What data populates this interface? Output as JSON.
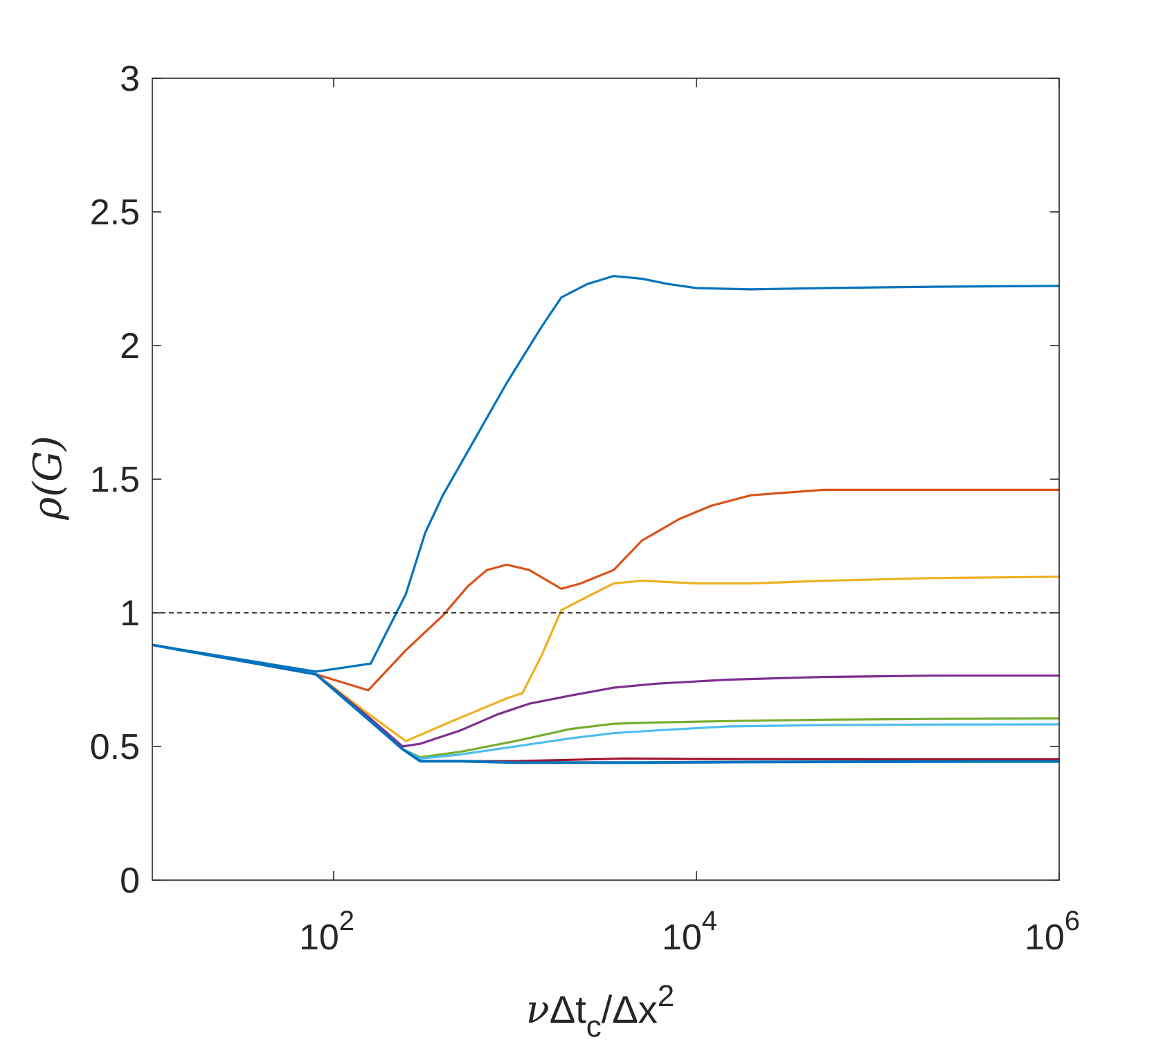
{
  "chart_data": {
    "type": "line",
    "xscale": "log",
    "xlim": [
      10,
      1000000
    ],
    "ylim": [
      0,
      3
    ],
    "grid": false,
    "legend": "none",
    "xticks": [
      {
        "value": 100,
        "base": "10",
        "exp": "2"
      },
      {
        "value": 10000,
        "base": "10",
        "exp": "4"
      },
      {
        "value": 1000000,
        "base": "10",
        "exp": "6"
      }
    ],
    "yticks": [
      {
        "value": 0,
        "label": "0"
      },
      {
        "value": 0.5,
        "label": "0.5"
      },
      {
        "value": 1,
        "label": "1"
      },
      {
        "value": 1.5,
        "label": "1.5"
      },
      {
        "value": 2,
        "label": "2"
      },
      {
        "value": 2.5,
        "label": "2.5"
      },
      {
        "value": 3,
        "label": "3"
      }
    ],
    "xlabel": {
      "nu": "ν",
      "delta_t": "Δt",
      "sub": "c",
      "slash": "/",
      "delta_x": "Δx",
      "sup": "2"
    },
    "ylabel": {
      "rho": "ρ",
      "open": "(",
      "G": "G",
      "close": ")"
    },
    "reference_line": {
      "y": 1,
      "style": "dashed",
      "color": "#000000"
    },
    "series": [
      {
        "color": "#0072BD",
        "points": [
          [
            10,
            0.88
          ],
          [
            80,
            0.78
          ],
          [
            160,
            0.81
          ],
          [
            250,
            1.07
          ],
          [
            320,
            1.3
          ],
          [
            400,
            1.44
          ],
          [
            600,
            1.65
          ],
          [
            900,
            1.86
          ],
          [
            1400,
            2.07
          ],
          [
            1800,
            2.18
          ],
          [
            2500,
            2.23
          ],
          [
            3500,
            2.26
          ],
          [
            5000,
            2.25
          ],
          [
            7000,
            2.23
          ],
          [
            10000,
            2.215
          ],
          [
            20000,
            2.21
          ],
          [
            50000,
            2.215
          ],
          [
            200000,
            2.22
          ],
          [
            1000000,
            2.223
          ]
        ]
      },
      {
        "color": "#D95319",
        "points": [
          [
            10,
            0.88
          ],
          [
            80,
            0.77
          ],
          [
            155,
            0.71
          ],
          [
            250,
            0.86
          ],
          [
            400,
            0.99
          ],
          [
            550,
            1.1
          ],
          [
            700,
            1.16
          ],
          [
            900,
            1.18
          ],
          [
            1200,
            1.16
          ],
          [
            1600,
            1.11
          ],
          [
            1800,
            1.09
          ],
          [
            2300,
            1.11
          ],
          [
            3500,
            1.16
          ],
          [
            5000,
            1.27
          ],
          [
            8000,
            1.35
          ],
          [
            12000,
            1.4
          ],
          [
            20000,
            1.44
          ],
          [
            50000,
            1.46
          ],
          [
            200000,
            1.46
          ],
          [
            1000000,
            1.46
          ]
        ]
      },
      {
        "color": "#EDB120",
        "points": [
          [
            10,
            0.88
          ],
          [
            80,
            0.77
          ],
          [
            150,
            0.63
          ],
          [
            250,
            0.52
          ],
          [
            400,
            0.58
          ],
          [
            600,
            0.63
          ],
          [
            900,
            0.68
          ],
          [
            1100,
            0.7
          ],
          [
            1400,
            0.84
          ],
          [
            1800,
            1.01
          ],
          [
            2500,
            1.06
          ],
          [
            3500,
            1.11
          ],
          [
            5000,
            1.12
          ],
          [
            10000,
            1.11
          ],
          [
            20000,
            1.11
          ],
          [
            50000,
            1.12
          ],
          [
            200000,
            1.13
          ],
          [
            1000000,
            1.135
          ]
        ]
      },
      {
        "color": "#7E2F8E",
        "points": [
          [
            10,
            0.88
          ],
          [
            80,
            0.77
          ],
          [
            150,
            0.62
          ],
          [
            240,
            0.5
          ],
          [
            300,
            0.51
          ],
          [
            500,
            0.56
          ],
          [
            800,
            0.62
          ],
          [
            1200,
            0.66
          ],
          [
            2000,
            0.69
          ],
          [
            3500,
            0.72
          ],
          [
            6000,
            0.735
          ],
          [
            15000,
            0.75
          ],
          [
            50000,
            0.76
          ],
          [
            200000,
            0.765
          ],
          [
            1000000,
            0.765
          ]
        ]
      },
      {
        "color": "#77AC30",
        "points": [
          [
            10,
            0.88
          ],
          [
            80,
            0.77
          ],
          [
            150,
            0.61
          ],
          [
            240,
            0.49
          ],
          [
            300,
            0.46
          ],
          [
            500,
            0.48
          ],
          [
            1000,
            0.52
          ],
          [
            2000,
            0.565
          ],
          [
            3500,
            0.585
          ],
          [
            6000,
            0.59
          ],
          [
            15000,
            0.595
          ],
          [
            50000,
            0.6
          ],
          [
            200000,
            0.603
          ],
          [
            1000000,
            0.605
          ]
        ]
      },
      {
        "color": "#4DBEEE",
        "points": [
          [
            10,
            0.88
          ],
          [
            80,
            0.77
          ],
          [
            150,
            0.61
          ],
          [
            240,
            0.49
          ],
          [
            300,
            0.455
          ],
          [
            500,
            0.47
          ],
          [
            1000,
            0.5
          ],
          [
            2000,
            0.53
          ],
          [
            3500,
            0.55
          ],
          [
            6000,
            0.56
          ],
          [
            15000,
            0.575
          ],
          [
            50000,
            0.58
          ],
          [
            200000,
            0.582
          ],
          [
            1000000,
            0.583
          ]
        ]
      },
      {
        "color": "#A2142F",
        "points": [
          [
            10,
            0.88
          ],
          [
            80,
            0.77
          ],
          [
            150,
            0.61
          ],
          [
            240,
            0.49
          ],
          [
            300,
            0.445
          ],
          [
            500,
            0.445
          ],
          [
            1000,
            0.445
          ],
          [
            2000,
            0.45
          ],
          [
            4000,
            0.455
          ],
          [
            10000,
            0.453
          ],
          [
            100000,
            0.452
          ],
          [
            1000000,
            0.452
          ]
        ]
      },
      {
        "color": "#0072BD",
        "points": [
          [
            10,
            0.88
          ],
          [
            80,
            0.77
          ],
          [
            150,
            0.61
          ],
          [
            240,
            0.49
          ],
          [
            300,
            0.445
          ],
          [
            500,
            0.445
          ],
          [
            1000,
            0.44
          ],
          [
            2000,
            0.44
          ],
          [
            5000,
            0.44
          ],
          [
            20000,
            0.442
          ],
          [
            100000,
            0.443
          ],
          [
            1000000,
            0.444
          ]
        ]
      }
    ]
  }
}
